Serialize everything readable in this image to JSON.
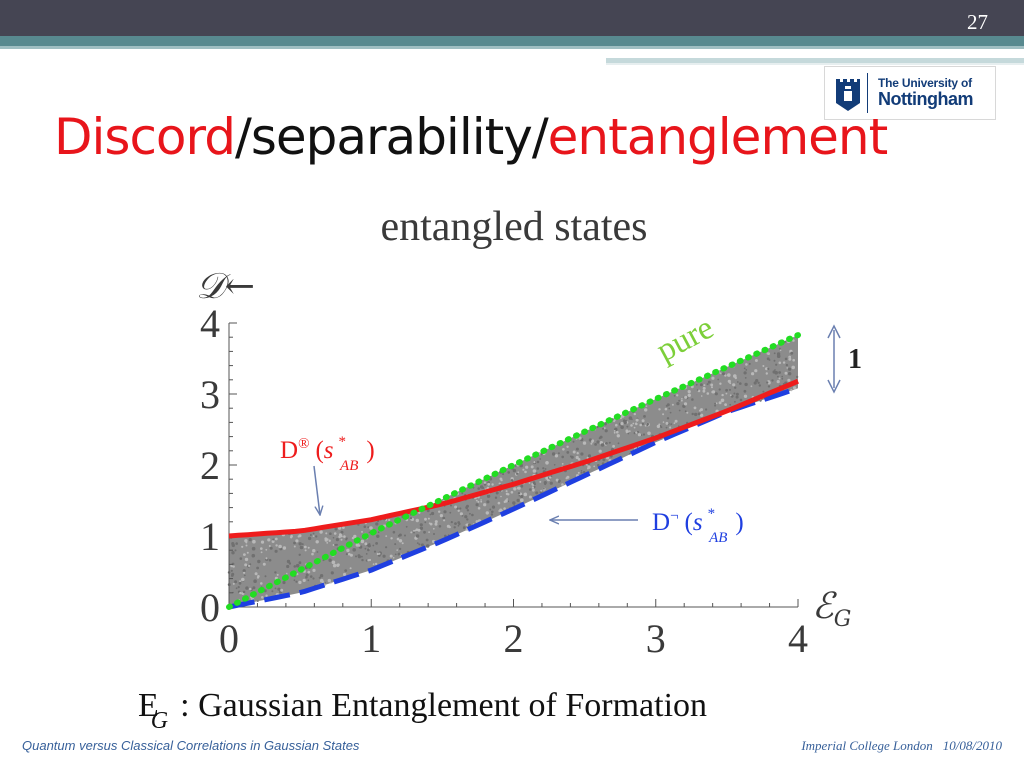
{
  "slide": {
    "number": "27",
    "title": {
      "part1": "Discord",
      "sep1": "/",
      "part2": "separability",
      "sep2": "/",
      "part3": "entanglement"
    },
    "logo": {
      "line1": "The University of",
      "line2": "Nottingham",
      "crest_icon": "castle-crest-icon"
    },
    "footer": {
      "left": "Quantum versus Classical Correlations in Gaussian States",
      "institution": "Imperial College London",
      "date": "10/08/2010"
    },
    "caption": {
      "symbol": "E",
      "subscript": "G",
      "text": ": Gaussian  Entanglement  of  Formation"
    },
    "colors": {
      "header": "#454553",
      "band": "#58898f",
      "title_accent": "#e8151b",
      "upper_curve": "#ee1c1c",
      "lower_curve": "#1f3fe0",
      "pure_line": "#22dd22",
      "annotation_arrow": "#6a7fb0"
    }
  },
  "chart_data": {
    "type": "scatter",
    "title": "entangled states",
    "ylabel": "𝒟←",
    "xlabel": "ℰ",
    "xlabel_sub": "G",
    "xlim": [
      0,
      4
    ],
    "ylim": [
      0,
      4
    ],
    "x_ticks": [
      "0",
      "1",
      "2",
      "3",
      "4"
    ],
    "y_ticks": [
      "0",
      "1",
      "2",
      "3",
      "4"
    ],
    "series": [
      {
        "name": "pure",
        "style": "dotted",
        "color": "#22dd22",
        "x": [
          0,
          0.5,
          1,
          1.5,
          2,
          2.5,
          3,
          3.5,
          4
        ],
        "y": [
          0,
          0.52,
          1.04,
          1.52,
          2.0,
          2.47,
          2.93,
          3.38,
          3.83
        ]
      },
      {
        "name": "upper",
        "style": "solid",
        "color": "#ee1c1c",
        "x": [
          0,
          0.5,
          1,
          1.5,
          2,
          2.5,
          3,
          3.5,
          4
        ],
        "y": [
          1.0,
          1.07,
          1.23,
          1.45,
          1.73,
          2.04,
          2.38,
          2.76,
          3.18
        ]
      },
      {
        "name": "lower",
        "style": "dashed",
        "color": "#1f3fe0",
        "x": [
          0,
          0.5,
          1,
          1.5,
          2,
          2.5,
          3,
          3.5,
          4
        ],
        "y": [
          0,
          0.2,
          0.52,
          0.93,
          1.38,
          1.85,
          2.32,
          2.75,
          3.08
        ]
      }
    ],
    "labels": {
      "pure": "pure",
      "upper_label": {
        "D": "D",
        "sup": "®",
        "open": "(",
        "s": "s",
        "star": "*",
        "sub": "AB",
        "close": ")"
      },
      "lower_label": {
        "D": "D",
        "sup": "¬",
        "open": "(",
        "s": "s",
        "star": "*",
        "sub": "AB",
        "close": ")"
      },
      "gap_label": "1"
    },
    "annotations": {
      "gap_between": [
        "pure",
        "lower"
      ],
      "gap_at_x": 4,
      "gap_value": "1"
    }
  }
}
